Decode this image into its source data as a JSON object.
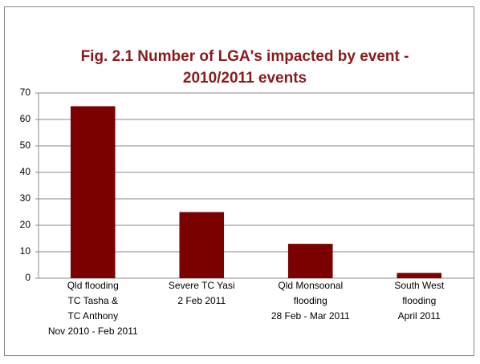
{
  "chart_data": {
    "type": "bar",
    "title": "Fig. 2.1 Number of LGA's impacted by event - 2010/2011 events",
    "categories": [
      "Qld flooding\nTC Tasha &\nTC Anthony\nNov 2010 - Feb 2011",
      "Severe TC Yasi\n2 Feb 2011",
      "Qld Monsoonal\nflooding\n28 Feb - Mar 2011",
      "South West\nflooding\nApril 2011"
    ],
    "values": [
      65,
      25,
      13,
      2
    ],
    "color": "#7b0000",
    "ylim": [
      0,
      70
    ],
    "yticks": [
      0,
      10,
      20,
      30,
      40,
      50,
      60,
      70
    ],
    "grid": true
  }
}
